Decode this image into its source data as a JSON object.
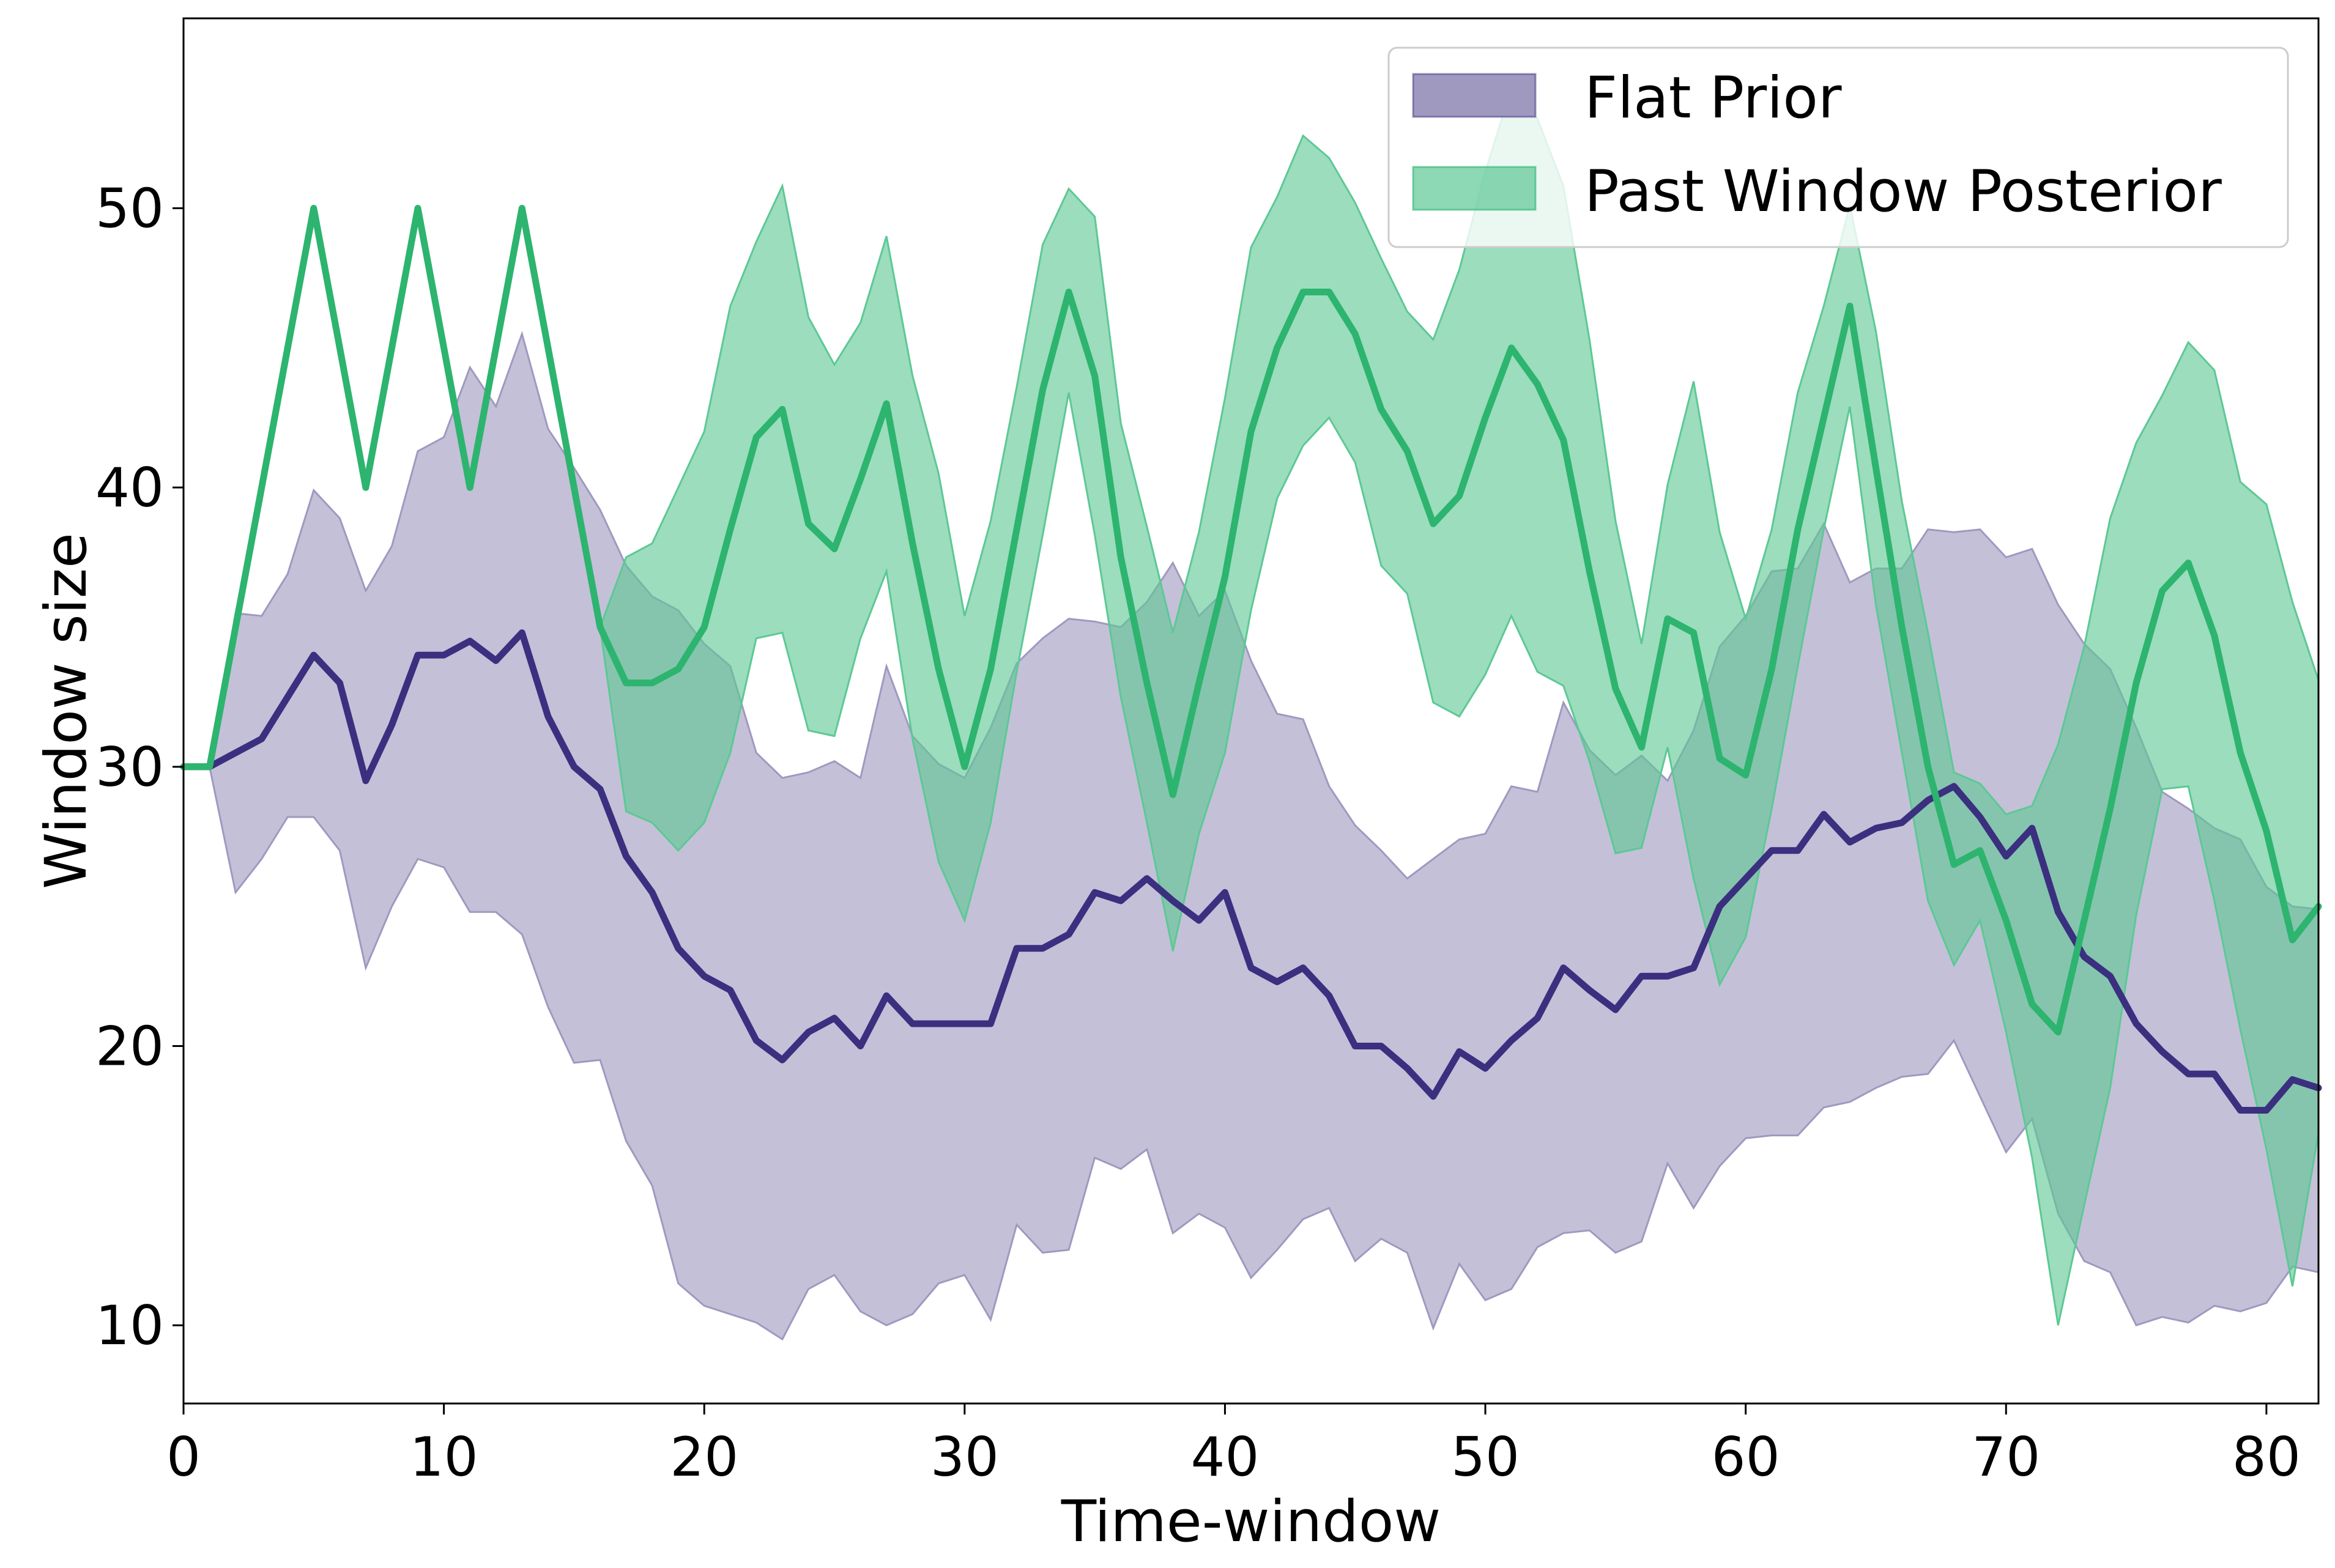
{
  "chart_data": {
    "type": "line",
    "title": "",
    "xlabel": "Time-window",
    "ylabel": "Window size",
    "xlim": [
      0,
      82
    ],
    "ylim": [
      7.2,
      56.8
    ],
    "xticks": [
      0,
      10,
      20,
      30,
      40,
      50,
      60,
      70,
      80
    ],
    "yticks": [
      10,
      20,
      30,
      40,
      50
    ],
    "grid": false,
    "legend_position": "top-right",
    "x": [
      0,
      1,
      2,
      3,
      4,
      5,
      6,
      7,
      8,
      9,
      10,
      11,
      12,
      13,
      14,
      15,
      16,
      17,
      18,
      19,
      20,
      21,
      22,
      23,
      24,
      25,
      26,
      27,
      28,
      29,
      30,
      31,
      32,
      33,
      34,
      35,
      36,
      37,
      38,
      39,
      40,
      41,
      42,
      43,
      44,
      45,
      46,
      47,
      48,
      49,
      50,
      51,
      52,
      53,
      54,
      55,
      56,
      57,
      58,
      59,
      60,
      61,
      62,
      63,
      64,
      65,
      66,
      67,
      68,
      69,
      70,
      71,
      72,
      73,
      74,
      75,
      76,
      77,
      78,
      79,
      80,
      81,
      82
    ],
    "series": [
      {
        "name": "Flat Prior",
        "line_color": "#3b2f7f",
        "fill_color": "#9f99c0",
        "values": [
          30,
          30,
          30.5,
          31,
          32.5,
          34,
          33,
          29.5,
          31.5,
          34,
          34,
          34.5,
          33.8,
          34.8,
          31.8,
          30,
          29.2,
          26.8,
          25.5,
          23.5,
          22.5,
          22,
          20.2,
          19.5,
          20.5,
          21,
          20,
          21.8,
          20.8,
          20.8,
          20.8,
          20.8,
          23.5,
          23.5,
          24,
          25.5,
          25.2,
          26,
          25.2,
          24.5,
          25.5,
          22.8,
          22.3,
          22.8,
          21.8,
          20,
          20,
          19.2,
          18.2,
          19.8,
          19.2,
          20.2,
          21,
          22.8,
          22,
          21.3,
          22.5,
          22.5,
          22.8,
          25,
          26,
          27,
          27,
          28.3,
          27.3,
          27.8,
          28,
          28.8,
          29.3,
          28.2,
          26.8,
          27.8,
          24.8,
          23.2,
          22.5,
          20.8,
          19.8,
          19,
          19,
          17.7,
          17.7,
          18.8,
          18.5
        ],
        "lower": [
          30,
          30,
          25.5,
          26.7,
          28.2,
          28.2,
          27,
          22.8,
          25,
          26.7,
          26.4,
          24.8,
          24.8,
          24,
          21.4,
          19.4,
          19.5,
          16.6,
          15,
          11.5,
          10.7,
          10.4,
          10.1,
          9.5,
          11.3,
          11.8,
          10.5,
          10,
          10.4,
          11.5,
          11.8,
          10.2,
          13.6,
          12.6,
          12.7,
          16,
          15.6,
          16.3,
          13.3,
          14,
          13.5,
          11.7,
          12.7,
          13.8,
          14.2,
          12.3,
          13.1,
          12.6,
          9.9,
          12.2,
          10.9,
          11.3,
          12.8,
          13.3,
          13.4,
          12.6,
          13,
          15.8,
          14.2,
          15.7,
          16.7,
          16.8,
          16.8,
          17.8,
          18,
          18.5,
          18.9,
          19,
          20.2,
          18.2,
          16.2,
          17.4,
          14,
          12.3,
          11.9,
          10,
          10.3,
          10.1,
          10.7,
          10.5,
          10.8,
          12.1,
          11.9
        ],
        "upper": [
          30,
          30,
          35.5,
          35.4,
          36.9,
          39.9,
          38.9,
          36.3,
          37.9,
          41.3,
          41.8,
          44.3,
          42.9,
          45.5,
          42.1,
          40.7,
          39.2,
          37.2,
          36.1,
          35.6,
          34.4,
          33.6,
          30.5,
          29.6,
          29.8,
          30.2,
          29.6,
          33.6,
          31.1,
          30.1,
          29.6,
          31.4,
          33.7,
          34.6,
          35.3,
          35.2,
          35,
          35.9,
          37.3,
          35.4,
          36.3,
          33.8,
          31.9,
          31.7,
          29.3,
          27.9,
          27,
          26,
          26.7,
          27.4,
          27.6,
          29.3,
          29.1,
          32.3,
          30.6,
          29.7,
          30.4,
          29.5,
          31.3,
          34.3,
          35.4,
          37,
          37.1,
          38.7,
          36.6,
          37.1,
          37.1,
          38.5,
          38.4,
          38.5,
          37.5,
          37.8,
          35.8,
          34.4,
          33.5,
          31.4,
          29.1,
          28.5,
          27.8,
          27.4,
          25.7,
          25,
          24.9
        ]
      },
      {
        "name": "Past Window Posterior",
        "line_color": "#2db46f",
        "fill_color": "#5dc895",
        "values": [
          30,
          30,
          35,
          40,
          45,
          50,
          45,
          40,
          45,
          50,
          45,
          40,
          45,
          50,
          45,
          40,
          35,
          33,
          33,
          33.5,
          35,
          38.5,
          41.8,
          42.8,
          38.7,
          37.8,
          40.3,
          43,
          38,
          33.5,
          30,
          33.5,
          38.5,
          43.5,
          47,
          44,
          37.5,
          33,
          29,
          33,
          36.8,
          42,
          45,
          47,
          47,
          45.5,
          42.8,
          41.3,
          38.7,
          39.7,
          42.5,
          45,
          43.7,
          41.7,
          37,
          32.8,
          30.7,
          35.3,
          34.8,
          30.3,
          29.7,
          33.5,
          38.5,
          42.5,
          46.5,
          40.7,
          35,
          30,
          26.5,
          27,
          24.5,
          21.5,
          20.5,
          24.5,
          28.5,
          33,
          36.3,
          37.3,
          34.7,
          30.5,
          27.7,
          23.8,
          25
        ]
      }
    ],
    "band_upper_posterior": [
      30,
      30,
      35.5,
      40,
      45,
      50,
      45,
      40,
      45,
      50,
      45,
      40,
      45,
      50,
      45,
      40,
      35,
      37.5,
      38,
      40,
      42,
      46.5,
      48.8,
      50.8,
      46.1,
      44.4,
      45.9,
      49,
      44,
      40.5,
      35.4,
      38.8,
      43.6,
      48.7,
      50.7,
      49.7,
      42.3,
      38.6,
      34.8,
      38.4,
      43.2,
      48.6,
      50.4,
      52.6,
      51.8,
      50.2,
      48.2,
      46.3,
      45.3,
      47.8,
      51.3,
      54.3,
      53.2,
      50.8,
      45.3,
      38.8,
      34.4,
      40.1,
      43.8,
      38.4,
      35.3,
      38.5,
      43.4,
      46.5,
      50.1,
      45.6,
      39.5,
      34.8,
      29.8,
      29.4,
      28.3,
      28.6,
      30.8,
      34.3,
      38.9,
      41.6,
      43.3,
      45.2,
      44.2,
      40.2,
      39.4,
      35.9,
      33.1
    ],
    "band_lower_posterior": [
      30,
      30,
      35.5,
      40,
      45,
      50,
      45,
      40,
      45,
      50,
      45,
      40,
      45,
      50,
      45,
      40,
      35,
      28.4,
      28,
      27,
      28,
      30.5,
      34.6,
      34.8,
      31.3,
      31.1,
      34.6,
      37,
      31,
      26.6,
      24.5,
      28,
      33.4,
      38.3,
      43.4,
      38.3,
      32.5,
      28,
      23.4,
      27.6,
      30.5,
      35.6,
      39.6,
      41.5,
      42.5,
      40.9,
      37.2,
      36.2,
      32.3,
      31.8,
      33.3,
      35.4,
      33.4,
      32.9,
      30.2,
      26.9,
      27.1,
      30.7,
      26,
      22.2,
      23.9,
      28.5,
      33.6,
      38.5,
      42.9,
      35.8,
      30.5,
      25.2,
      22.9,
      24.5,
      20.5,
      16,
      10,
      14.3,
      18.5,
      24.7,
      29.2,
      29.3,
      25.2,
      20.6,
      16.3,
      11.4,
      16.9
    ]
  }
}
